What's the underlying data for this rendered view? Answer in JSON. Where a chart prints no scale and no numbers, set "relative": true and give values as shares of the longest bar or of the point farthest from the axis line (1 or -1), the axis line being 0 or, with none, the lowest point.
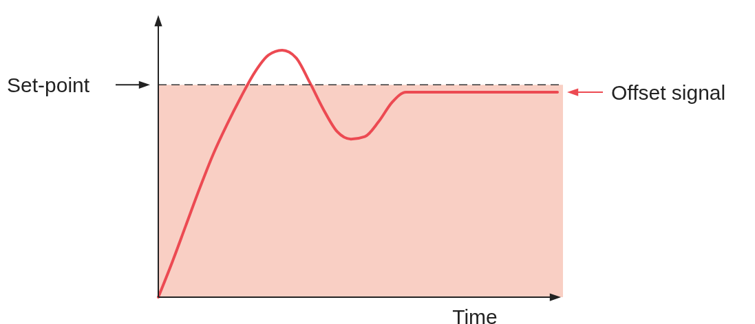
{
  "chart_data": {
    "type": "line",
    "relative": true,
    "xlabel": "Time",
    "categories": [
      null,
      null,
      null,
      null,
      null,
      null,
      null,
      null,
      null,
      null,
      null,
      null,
      null,
      null,
      null,
      null,
      null,
      null,
      null,
      null,
      null,
      null,
      null,
      null,
      null,
      null,
      null,
      null,
      null,
      null
    ],
    "series": [
      {
        "color": "#ec4a52",
        "values": [
          0,
          0.14,
          0.29,
          0.44,
          0.58,
          0.7,
          0.81,
          0.91,
          0.98,
          1,
          0.97,
          0.87,
          0.76,
          0.67,
          0.64,
          0.65,
          0.71,
          0.79,
          0.83,
          0.83,
          0.83,
          0.83,
          0.83,
          0.83,
          0.83,
          0.83,
          0.83,
          0.83,
          0.83,
          0.83
        ]
      }
    ],
    "ref_lines": [
      {
        "axis": "y",
        "value": 0.86,
        "label": "Set-point",
        "color": "#333333",
        "line_style": "dashed"
      }
    ],
    "bands": [
      {
        "axis": "y",
        "from": 0,
        "to": 0.86,
        "color": "#f9cfc4"
      }
    ],
    "annotations": [
      "Offset signal"
    ]
  }
}
